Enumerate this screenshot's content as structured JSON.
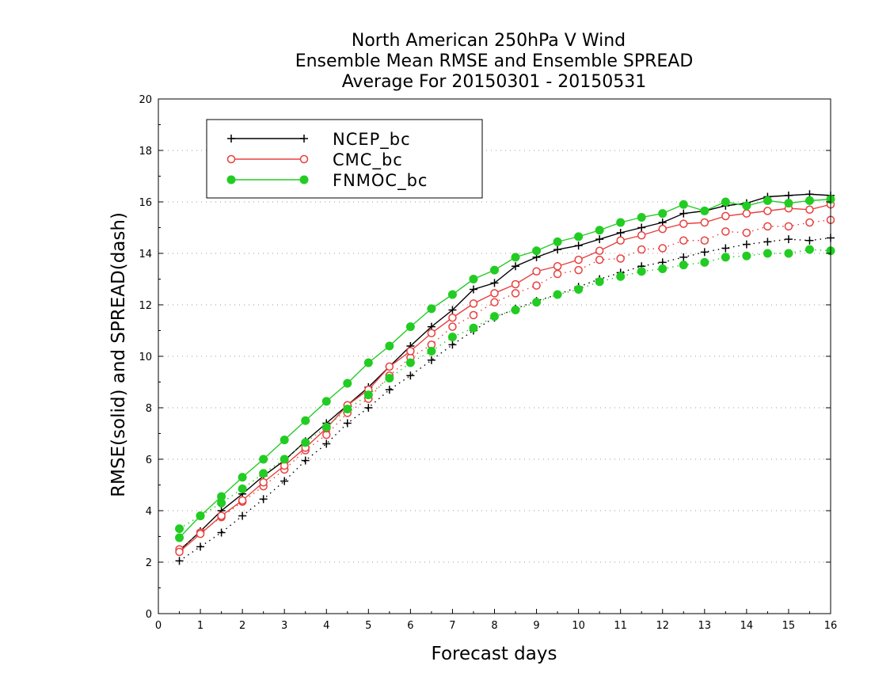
{
  "chart_data": {
    "type": "line",
    "title": [
      "North American 250hPa V Wind",
      "Ensemble Mean RMSE and Ensemble SPREAD",
      "Average For 20150301 - 20150531"
    ],
    "xlabel": "Forecast days",
    "ylabel": "RMSE(solid) and SPREAD(dash)",
    "xlim": [
      0,
      16
    ],
    "ylim": [
      0,
      20
    ],
    "xticks": [
      "0",
      "1",
      "2",
      "3",
      "4",
      "5",
      "6",
      "7",
      "8",
      "9",
      "10",
      "11",
      "12",
      "13",
      "14",
      "15",
      "16"
    ],
    "yticks": [
      "0",
      "2",
      "4",
      "6",
      "8",
      "10",
      "12",
      "14",
      "16",
      "18",
      "20"
    ],
    "grid": true,
    "legend_position": "top-left",
    "x": [
      0.5,
      1,
      1.5,
      2,
      2.5,
      3,
      3.5,
      4,
      4.5,
      5,
      5.5,
      6,
      6.5,
      7,
      7.5,
      8,
      8.5,
      9,
      9.5,
      10,
      10.5,
      11,
      11.5,
      12,
      12.5,
      13,
      13.5,
      14,
      14.5,
      15,
      15.5,
      16
    ],
    "series": [
      {
        "name": "NCEP_bc",
        "color": "#000000",
        "marker": "plus",
        "rmse": [
          2.45,
          3.2,
          4.0,
          4.65,
          5.35,
          5.95,
          6.7,
          7.4,
          8.1,
          8.8,
          9.6,
          10.4,
          11.15,
          11.8,
          12.6,
          12.85,
          13.5,
          13.85,
          14.15,
          14.3,
          14.55,
          14.8,
          15.0,
          15.2,
          15.55,
          15.65,
          15.85,
          15.95,
          16.2,
          16.25,
          16.3,
          16.25
        ],
        "spread": [
          2.05,
          2.6,
          3.15,
          3.8,
          4.45,
          5.15,
          5.95,
          6.6,
          7.4,
          8.0,
          8.7,
          9.25,
          9.85,
          10.45,
          11.0,
          11.5,
          11.85,
          12.15,
          12.4,
          12.7,
          13.0,
          13.25,
          13.5,
          13.65,
          13.85,
          14.05,
          14.2,
          14.35,
          14.45,
          14.55,
          14.5,
          14.6
        ]
      },
      {
        "name": "CMC_bc",
        "color": "#e8403f",
        "marker": "open-circle",
        "rmse": [
          2.4,
          3.1,
          3.8,
          4.4,
          5.1,
          5.75,
          6.45,
          7.2,
          8.1,
          8.7,
          9.6,
          10.2,
          10.9,
          11.5,
          12.05,
          12.45,
          12.8,
          13.3,
          13.5,
          13.75,
          14.1,
          14.5,
          14.7,
          14.95,
          15.15,
          15.2,
          15.45,
          15.55,
          15.65,
          15.75,
          15.7,
          15.9
        ],
        "spread": [
          2.5,
          3.15,
          3.75,
          4.35,
          4.95,
          5.6,
          6.35,
          6.95,
          7.8,
          8.35,
          9.25,
          9.95,
          10.45,
          11.15,
          11.6,
          12.1,
          12.45,
          12.75,
          13.2,
          13.35,
          13.75,
          13.8,
          14.15,
          14.2,
          14.5,
          14.5,
          14.85,
          14.8,
          15.05,
          15.05,
          15.2,
          15.3
        ]
      },
      {
        "name": "FNMOC_bc",
        "color": "#22cc22",
        "marker": "filled-circle",
        "rmse": [
          2.95,
          3.8,
          4.55,
          5.3,
          6.0,
          6.75,
          7.5,
          8.25,
          8.95,
          9.75,
          10.4,
          11.15,
          11.85,
          12.4,
          13.0,
          13.35,
          13.85,
          14.1,
          14.45,
          14.65,
          14.9,
          15.2,
          15.4,
          15.55,
          15.9,
          15.65,
          16.0,
          15.85,
          16.05,
          15.95,
          16.05,
          16.1
        ],
        "spread": [
          3.3,
          3.8,
          4.3,
          4.85,
          5.45,
          6.0,
          6.65,
          7.25,
          7.95,
          8.5,
          9.15,
          9.75,
          10.2,
          10.75,
          11.1,
          11.55,
          11.8,
          12.1,
          12.4,
          12.6,
          12.9,
          13.1,
          13.3,
          13.4,
          13.55,
          13.65,
          13.85,
          13.9,
          14.0,
          14.0,
          14.15,
          14.1
        ]
      }
    ]
  }
}
